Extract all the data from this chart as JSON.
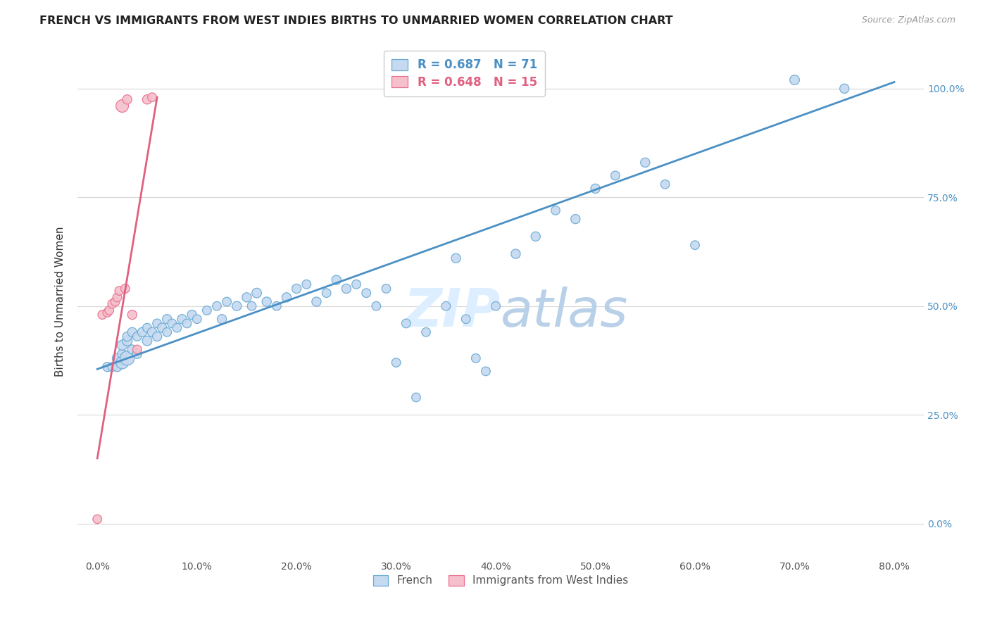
{
  "title": "FRENCH VS IMMIGRANTS FROM WEST INDIES BIRTHS TO UNMARRIED WOMEN CORRELATION CHART",
  "source": "Source: ZipAtlas.com",
  "ylabel": "Births to Unmarried Women",
  "x_ticks": [
    0.0,
    10.0,
    20.0,
    30.0,
    40.0,
    50.0,
    60.0,
    70.0,
    80.0
  ],
  "y_ticks": [
    0.0,
    25.0,
    50.0,
    75.0,
    100.0
  ],
  "xlim": [
    -2,
    83
  ],
  "ylim": [
    -8,
    110
  ],
  "legend_labels": [
    "French",
    "Immigrants from West Indies"
  ],
  "french_R": 0.687,
  "french_N": 71,
  "wi_R": 0.648,
  "wi_N": 15,
  "blue_fill": "#c5d9f0",
  "blue_edge": "#6aaad4",
  "pink_fill": "#f5c0cb",
  "pink_edge": "#e87090",
  "blue_line": "#4a90c4",
  "pink_line": "#e06080",
  "watermark_color": "#dceeff",
  "background_color": "#ffffff",
  "grid_color": "#d8d8d8",
  "french_x": [
    1.0,
    1.5,
    2.0,
    2.0,
    2.5,
    2.5,
    2.5,
    3.0,
    3.0,
    3.0,
    3.5,
    3.5,
    4.0,
    4.0,
    4.5,
    5.0,
    5.0,
    5.5,
    6.0,
    6.0,
    6.5,
    7.0,
    7.0,
    7.5,
    8.0,
    8.5,
    9.0,
    9.5,
    10.0,
    11.0,
    12.0,
    12.5,
    13.0,
    14.0,
    15.0,
    15.5,
    16.0,
    17.0,
    18.0,
    19.0,
    20.0,
    21.0,
    22.0,
    23.0,
    24.0,
    25.0,
    26.0,
    27.0,
    28.0,
    29.0,
    30.0,
    31.0,
    32.0,
    33.0,
    35.0,
    36.0,
    37.0,
    38.0,
    39.0,
    40.0,
    42.0,
    44.0,
    46.0,
    48.0,
    50.0,
    52.0,
    55.0,
    57.0,
    60.0,
    70.0,
    75.0
  ],
  "french_y": [
    36.0,
    36.0,
    36.0,
    38.0,
    37.0,
    39.0,
    41.0,
    38.0,
    42.0,
    43.0,
    40.0,
    44.0,
    39.0,
    43.0,
    44.0,
    42.0,
    45.0,
    44.0,
    43.0,
    46.0,
    45.0,
    44.0,
    47.0,
    46.0,
    45.0,
    47.0,
    46.0,
    48.0,
    47.0,
    49.0,
    50.0,
    47.0,
    51.0,
    50.0,
    52.0,
    50.0,
    53.0,
    51.0,
    50.0,
    52.0,
    54.0,
    55.0,
    51.0,
    53.0,
    56.0,
    54.0,
    55.0,
    53.0,
    50.0,
    54.0,
    37.0,
    46.0,
    29.0,
    44.0,
    50.0,
    61.0,
    47.0,
    38.0,
    35.0,
    50.0,
    62.0,
    66.0,
    72.0,
    70.0,
    77.0,
    80.0,
    83.0,
    78.0,
    64.0,
    102.0,
    100.0
  ],
  "french_sizes": [
    60,
    55,
    60,
    70,
    110,
    60,
    70,
    140,
    70,
    60,
    60,
    60,
    60,
    55,
    60,
    65,
    55,
    60,
    60,
    55,
    60,
    55,
    60,
    55,
    55,
    60,
    55,
    60,
    55,
    55,
    55,
    60,
    55,
    60,
    60,
    55,
    65,
    60,
    55,
    60,
    60,
    55,
    60,
    55,
    60,
    60,
    55,
    55,
    55,
    55,
    55,
    55,
    55,
    55,
    55,
    60,
    55,
    55,
    55,
    55,
    60,
    60,
    55,
    60,
    60,
    55,
    60,
    55,
    55,
    65,
    60
  ],
  "wi_x": [
    0.0,
    0.5,
    1.0,
    1.2,
    1.5,
    1.8,
    2.0,
    2.2,
    2.5,
    2.8,
    3.0,
    3.5,
    4.0,
    5.0,
    5.5
  ],
  "wi_y": [
    1.0,
    48.0,
    48.5,
    49.0,
    50.5,
    51.0,
    52.0,
    53.5,
    96.0,
    54.0,
    97.5,
    48.0,
    40.0,
    97.5,
    98.0
  ],
  "wi_sizes": [
    55,
    55,
    55,
    55,
    55,
    55,
    55,
    55,
    110,
    55,
    60,
    60,
    55,
    60,
    55
  ],
  "blue_reg_x0": 0.0,
  "blue_reg_y0": 35.5,
  "blue_reg_x1": 80.0,
  "blue_reg_y1": 101.5,
  "pink_reg_x0": 0.0,
  "pink_reg_y0": 15.0,
  "pink_reg_x1": 6.0,
  "pink_reg_y1": 98.0
}
